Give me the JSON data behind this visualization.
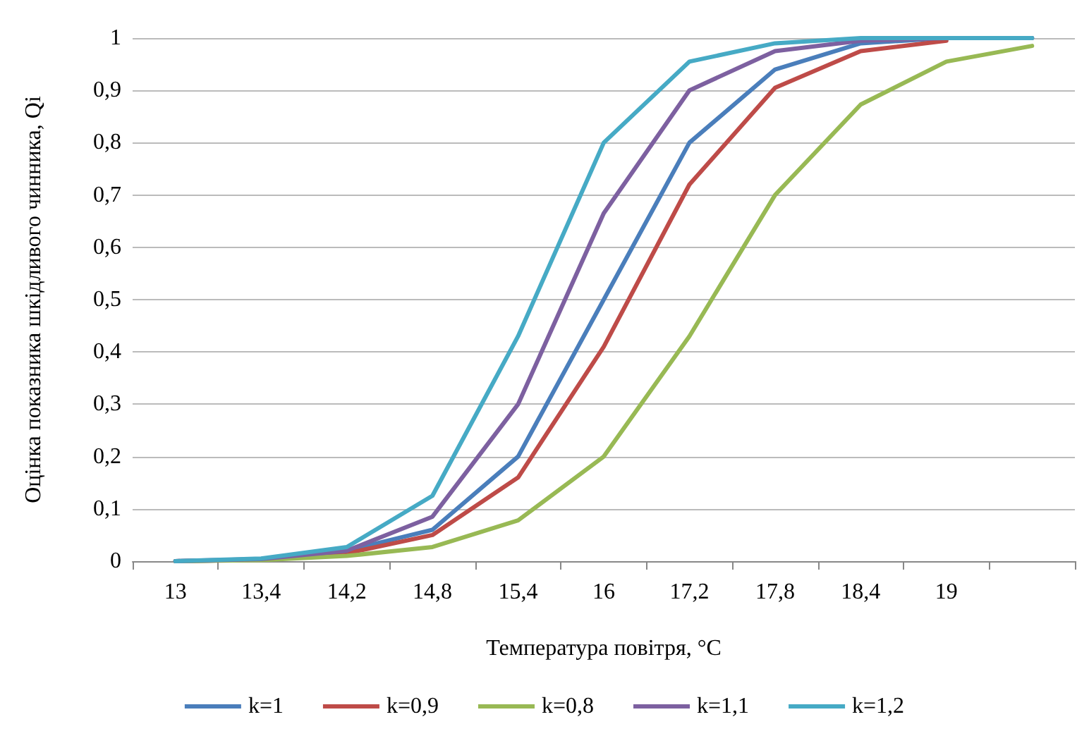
{
  "chart_data": {
    "type": "line",
    "xlabel": "Температура повітря, °C",
    "ylabel": "Оцінка показника шкідливого чинника, Qi",
    "categories": [
      "13",
      "13,4",
      "14,2",
      "14,8",
      "15,4",
      "16",
      "17,2",
      "17,8",
      "18,4",
      "19",
      null
    ],
    "series": [
      {
        "name": "k=1",
        "color": "#4a7ebb",
        "values": [
          0,
          0.003,
          0.02,
          0.06,
          0.2,
          0.5,
          0.8,
          0.94,
          0.99,
          1,
          1
        ]
      },
      {
        "name": "k=0,9",
        "color": "#be4b48",
        "values": [
          0,
          0.003,
          0.015,
          0.05,
          0.16,
          0.41,
          0.72,
          0.905,
          0.975,
          0.995,
          null
        ]
      },
      {
        "name": "k=0,8",
        "color": "#98b954",
        "values": [
          0,
          0.002,
          0.01,
          0.027,
          0.078,
          0.2,
          0.43,
          0.7,
          0.873,
          0.955,
          0.985
        ]
      },
      {
        "name": "k=1,1",
        "color": "#7d60a0",
        "values": [
          0,
          0.004,
          0.02,
          0.085,
          0.3,
          0.665,
          0.9,
          0.975,
          0.995,
          1,
          1
        ]
      },
      {
        "name": "k=1,2",
        "color": "#46aac5",
        "values": [
          0,
          0.005,
          0.027,
          0.125,
          0.43,
          0.8,
          0.955,
          0.99,
          1,
          1,
          1
        ]
      }
    ],
    "ylim": [
      0,
      1
    ],
    "yticks": [
      0,
      {
        "value": 0.1,
        "label": "0,1"
      },
      {
        "value": 0.2,
        "label": "0,2"
      },
      {
        "value": 0.3,
        "label": "0,3"
      },
      {
        "value": 0.4,
        "label": "0,4"
      },
      {
        "value": 0.5,
        "label": "0,5"
      },
      {
        "value": 0.6,
        "label": "0,6"
      },
      {
        "value": 0.7,
        "label": "0,7"
      },
      {
        "value": 0.8,
        "label": "0,8"
      },
      {
        "value": 0.9,
        "label": "0,9"
      },
      1
    ],
    "grid": "y",
    "legend": "bottom",
    "marker": "none",
    "line_style": "solid"
  }
}
